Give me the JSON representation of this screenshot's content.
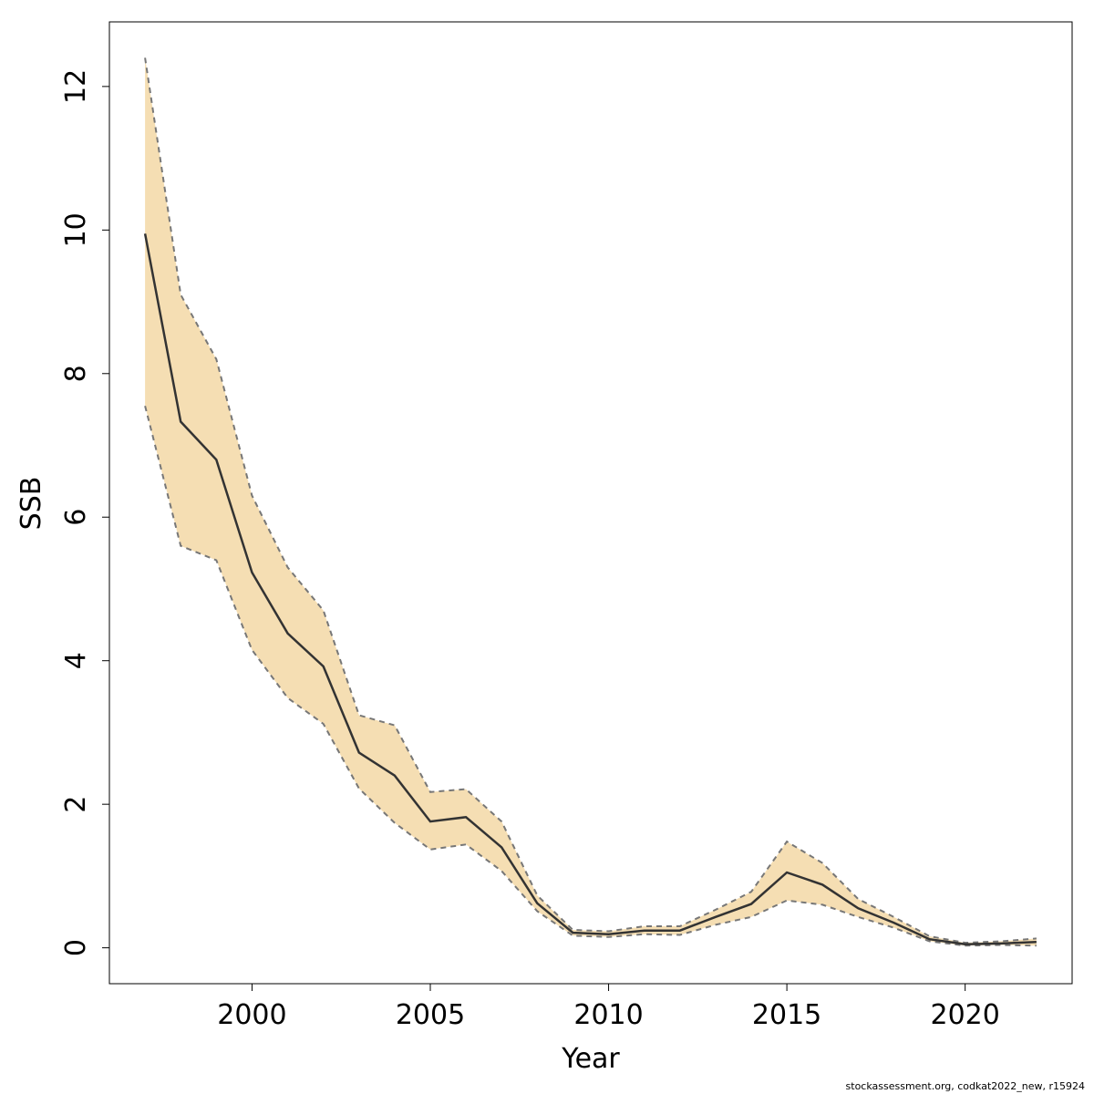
{
  "chart_data": {
    "type": "line",
    "xlabel": "Year",
    "ylabel": "SSB",
    "xlim": [
      1996.0,
      2023.0
    ],
    "ylim": [
      -0.5,
      12.9
    ],
    "xticks": [
      2000,
      2005,
      2010,
      2015,
      2020
    ],
    "yticks": [
      0,
      2,
      4,
      6,
      8,
      10,
      12
    ],
    "grid": false,
    "band_color": "#F5DEB3",
    "line_color": "#333333",
    "bound_color": "#777777",
    "series": [
      {
        "x": [
          1997,
          1998,
          1999,
          2000,
          2001,
          2002,
          2003,
          2004,
          2005,
          2006,
          2007,
          2008,
          2009,
          2010,
          2011,
          2012,
          2013,
          2014,
          2015,
          2016,
          2017,
          2018,
          2019,
          2020,
          2021,
          2022
        ],
        "y": [
          9.95,
          7.33,
          6.8,
          5.23,
          4.38,
          3.92,
          2.72,
          2.4,
          1.76,
          1.82,
          1.4,
          0.62,
          0.21,
          0.19,
          0.24,
          0.24,
          0.43,
          0.61,
          1.05,
          0.88,
          0.55,
          0.35,
          0.12,
          0.05,
          0.06,
          0.08
        ],
        "upper": [
          12.4,
          9.1,
          8.2,
          6.3,
          5.3,
          4.7,
          3.24,
          3.1,
          2.17,
          2.21,
          1.76,
          0.73,
          0.25,
          0.23,
          0.3,
          0.3,
          0.53,
          0.78,
          1.48,
          1.18,
          0.68,
          0.43,
          0.16,
          0.07,
          0.09,
          0.13
        ],
        "lower": [
          7.55,
          5.6,
          5.4,
          4.15,
          3.48,
          3.12,
          2.22,
          1.74,
          1.37,
          1.44,
          1.07,
          0.51,
          0.17,
          0.15,
          0.19,
          0.18,
          0.32,
          0.43,
          0.66,
          0.6,
          0.43,
          0.28,
          0.09,
          0.03,
          0.04,
          0.03
        ]
      }
    ]
  },
  "footer": {
    "credit": "stockassessment.org, codkat2022_new, r15924"
  }
}
